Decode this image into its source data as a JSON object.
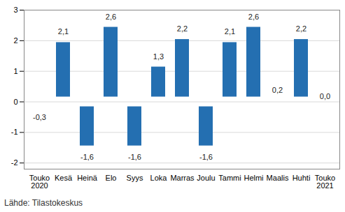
{
  "chart_data": {
    "type": "bar",
    "caption": "Lähde: Tilastokeskus",
    "categories": [
      "Touko\n2020",
      "Kesä",
      "Heinä",
      "Elo",
      "Syys",
      "Loka",
      "Marras",
      "Joulu",
      "Tammi",
      "Helmi",
      "Maalis",
      "Huhti",
      "Touko\n2021"
    ],
    "values": [
      -0.3,
      2.1,
      -1.6,
      2.6,
      -1.6,
      1.3,
      2.2,
      -1.6,
      2.1,
      2.6,
      0.2,
      2.2,
      0.0
    ],
    "value_labels": [
      "-0,3",
      "2,1",
      "-1,6",
      "2,6",
      "-1,6",
      "1,3",
      "2,2",
      "-1,6",
      "2,1",
      "2,6",
      "0,2",
      "2,2",
      "0,0"
    ],
    "color": "#246fb1",
    "ylim": [
      -2.2,
      3
    ],
    "yticks": [
      -2,
      -1,
      0,
      1,
      2,
      3
    ],
    "grid": true,
    "data_labels": true
  }
}
